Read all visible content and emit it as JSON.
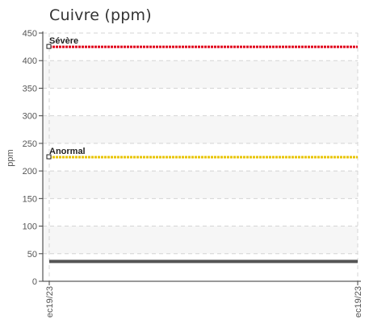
{
  "chart_data": {
    "type": "line",
    "title": "Cuivre (ppm)",
    "ylabel": "ppm",
    "xlabel": "",
    "ylim": [
      0,
      450
    ],
    "yticks": [
      0,
      50,
      100,
      150,
      200,
      250,
      300,
      350,
      400,
      450
    ],
    "x_tick_labels": [
      "ec19/23",
      "ec19/23"
    ],
    "grid": true,
    "series": [
      {
        "values": [
          36,
          36
        ],
        "color": "#555555"
      }
    ],
    "thresholds": [
      {
        "label": "Sévère",
        "value": 425,
        "color": "#e0001a"
      },
      {
        "label": "Anormal",
        "value": 225,
        "color": "#e8c400"
      }
    ]
  }
}
